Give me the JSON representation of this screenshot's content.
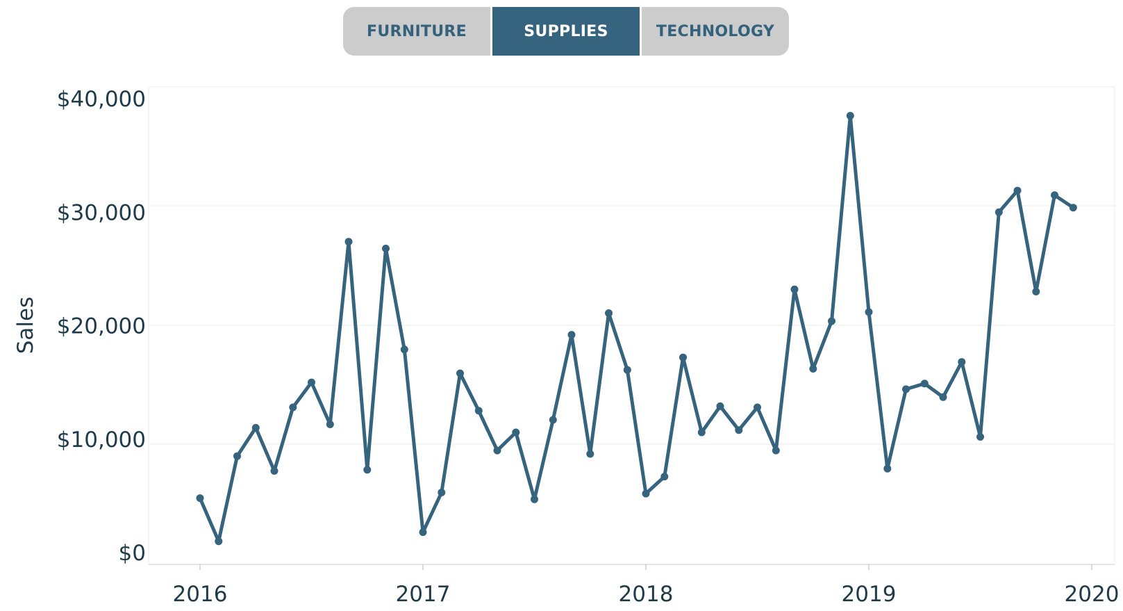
{
  "filter": {
    "tabs": [
      {
        "label": "FURNITURE",
        "active": false
      },
      {
        "label": "SUPPLIES",
        "active": true
      },
      {
        "label": "TECHNOLOGY",
        "active": false
      }
    ]
  },
  "colors": {
    "line": "#36647e",
    "tab_inactive_bg": "#cccccc",
    "tab_active_bg": "#36647e",
    "grid": "#ececec"
  },
  "chart_data": {
    "type": "line",
    "title": "",
    "xlabel": "",
    "ylabel": "Sales",
    "grid": true,
    "x_ticks": [
      "2016",
      "2017",
      "2018",
      "2019",
      "2020"
    ],
    "y_ticks": [
      "$0",
      "$10,000",
      "$20,000",
      "$30,000",
      "$40,000"
    ],
    "xlim": [
      "2016-01",
      "2020-01"
    ],
    "ylim": [
      0,
      40000
    ],
    "series": [
      {
        "name": "",
        "x": [
          "2016-01",
          "2016-02",
          "2016-03",
          "2016-04",
          "2016-05",
          "2016-06",
          "2016-07",
          "2016-08",
          "2016-09",
          "2016-10",
          "2016-11",
          "2016-12",
          "2017-01",
          "2017-02",
          "2017-03",
          "2017-04",
          "2017-05",
          "2017-06",
          "2017-07",
          "2017-08",
          "2017-09",
          "2017-10",
          "2017-11",
          "2017-12",
          "2018-01",
          "2018-02",
          "2018-03",
          "2018-04",
          "2018-05",
          "2018-06",
          "2018-07",
          "2018-08",
          "2018-09",
          "2018-10",
          "2018-11",
          "2018-12",
          "2019-01",
          "2019-02",
          "2019-03",
          "2019-04",
          "2019-05",
          "2019-06",
          "2019-07",
          "2019-08",
          "2019-09",
          "2019-10",
          "2019-11",
          "2019-12"
        ],
        "values": [
          4800,
          1000,
          8500,
          11000,
          7200,
          12800,
          15000,
          11300,
          27400,
          7300,
          26800,
          17900,
          1800,
          5300,
          15800,
          12500,
          9000,
          10600,
          4700,
          11700,
          19200,
          8700,
          21100,
          16100,
          5200,
          6700,
          17200,
          10600,
          12900,
          10800,
          12800,
          9000,
          23200,
          16200,
          20400,
          38500,
          21200,
          7400,
          14400,
          14900,
          13700,
          16800,
          10200,
          30000,
          31900,
          23000,
          31500,
          30400
        ]
      }
    ]
  }
}
